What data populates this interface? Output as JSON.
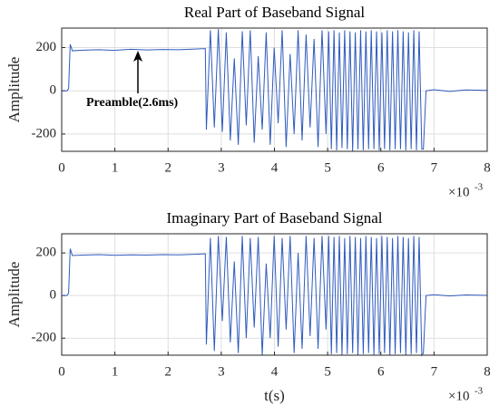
{
  "chart_data": [
    {
      "type": "line",
      "title": "Real Part of Baseband Signal",
      "ylabel": "Amplitude",
      "annotation": "Preamble(2.6ms)",
      "x_multiplier": "×10",
      "x_exponent": "-3",
      "xlim": [
        0,
        8
      ],
      "xticks": [
        0,
        1,
        2,
        3,
        4,
        5,
        6,
        7,
        8
      ],
      "ylim": [
        -280,
        290
      ],
      "yticks": [
        -200,
        0,
        200
      ],
      "grid": true,
      "series": [
        {
          "color": "#2f5bbd",
          "x": [
            0,
            0.1,
            0.13,
            0.16,
            0.2,
            0.4,
            0.7,
            1.0,
            1.3,
            1.6,
            1.9,
            2.2,
            2.5,
            2.7,
            2.72,
            2.795,
            2.87,
            2.945,
            3.02,
            3.095,
            3.17,
            3.245,
            3.32,
            3.395,
            3.47,
            3.545,
            3.62,
            3.695,
            3.77,
            3.845,
            3.92,
            3.995,
            4.07,
            4.145,
            4.22,
            4.295,
            4.37,
            4.445,
            4.52,
            4.595,
            4.67,
            4.745,
            4.82,
            4.895,
            4.97,
            5.02,
            5.07,
            5.12,
            5.17,
            5.22,
            5.27,
            5.32,
            5.37,
            5.42,
            5.47,
            5.52,
            5.57,
            5.62,
            5.67,
            5.72,
            5.77,
            5.82,
            5.87,
            5.92,
            5.97,
            6.02,
            6.07,
            6.12,
            6.17,
            6.22,
            6.27,
            6.32,
            6.37,
            6.42,
            6.47,
            6.52,
            6.57,
            6.62,
            6.67,
            6.72,
            6.77,
            6.8,
            6.85,
            7.0,
            7.3,
            7.6,
            8.0
          ],
          "values": [
            0,
            0,
            10,
            215,
            185,
            188,
            190,
            187,
            192,
            189,
            191,
            190,
            193,
            195,
            -180,
            280,
            -170,
            285,
            -190,
            270,
            -230,
            150,
            -250,
            275,
            -160,
            280,
            -240,
            160,
            -180,
            270,
            -250,
            200,
            -150,
            280,
            -260,
            170,
            -200,
            280,
            -230,
            260,
            -170,
            240,
            -260,
            280,
            -200,
            275,
            -270,
            280,
            -275,
            270,
            -265,
            280,
            -270,
            275,
            -280,
            270,
            -270,
            280,
            -275,
            275,
            -270,
            280,
            -270,
            275,
            -275,
            270,
            -270,
            280,
            -275,
            275,
            -270,
            280,
            -270,
            275,
            -275,
            270,
            -270,
            280,
            -275,
            275,
            -270,
            -270,
            0,
            5,
            -3,
            4,
            2
          ]
        }
      ]
    },
    {
      "type": "line",
      "title": "Imaginary Part of Baseband Signal",
      "ylabel": "Amplitude",
      "xlabel": "t(s)",
      "x_multiplier": "×10",
      "x_exponent": "-3",
      "xlim": [
        0,
        8
      ],
      "xticks": [
        0,
        1,
        2,
        3,
        4,
        5,
        6,
        7,
        8
      ],
      "ylim": [
        -280,
        290
      ],
      "yticks": [
        -200,
        0,
        200
      ],
      "grid": true,
      "series": [
        {
          "color": "#2f5bbd",
          "x": [
            0,
            0.1,
            0.13,
            0.16,
            0.2,
            0.4,
            0.7,
            1.0,
            1.3,
            1.6,
            1.9,
            2.2,
            2.5,
            2.7,
            2.72,
            2.795,
            2.87,
            2.945,
            3.02,
            3.095,
            3.17,
            3.245,
            3.32,
            3.395,
            3.47,
            3.545,
            3.62,
            3.695,
            3.77,
            3.845,
            3.92,
            3.995,
            4.07,
            4.145,
            4.22,
            4.295,
            4.37,
            4.445,
            4.52,
            4.595,
            4.67,
            4.745,
            4.82,
            4.895,
            4.97,
            5.02,
            5.07,
            5.12,
            5.17,
            5.22,
            5.27,
            5.32,
            5.37,
            5.42,
            5.47,
            5.52,
            5.57,
            5.62,
            5.67,
            5.72,
            5.77,
            5.82,
            5.87,
            5.92,
            5.97,
            6.02,
            6.07,
            6.12,
            6.17,
            6.22,
            6.27,
            6.32,
            6.37,
            6.42,
            6.47,
            6.52,
            6.57,
            6.62,
            6.67,
            6.72,
            6.77,
            6.8,
            6.85,
            7.0,
            7.3,
            7.6,
            8.0
          ],
          "values": [
            0,
            0,
            12,
            220,
            188,
            190,
            192,
            189,
            191,
            190,
            192,
            191,
            194,
            196,
            -230,
            270,
            -260,
            280,
            -120,
            275,
            -220,
            160,
            -270,
            280,
            -200,
            270,
            -150,
            275,
            -280,
            150,
            -200,
            280,
            -240,
            270,
            -160,
            280,
            -270,
            200,
            -250,
            280,
            -190,
            270,
            -250,
            280,
            -160,
            280,
            -275,
            275,
            -270,
            280,
            -280,
            270,
            -275,
            280,
            -270,
            275,
            -280,
            270,
            -275,
            280,
            -270,
            275,
            -280,
            270,
            -275,
            280,
            -270,
            275,
            -280,
            270,
            -275,
            280,
            -270,
            275,
            -280,
            270,
            -275,
            280,
            -270,
            275,
            -280,
            -270,
            0,
            4,
            -2,
            3,
            1
          ]
        }
      ]
    }
  ]
}
